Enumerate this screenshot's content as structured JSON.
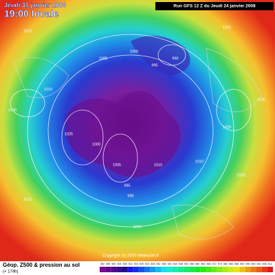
{
  "header": {
    "date": "Jeudi 31 janvier 2008",
    "time": "19:00 locale",
    "run": "Run GFS 12 Z du Jeudi 24 janvier 2008"
  },
  "footer": {
    "title": "Géop. Z500 & pression au sol",
    "lead": "(+ 174h)",
    "copyright": "Copyright (c) 2007 Meteociel.fr"
  },
  "colorbar": {
    "labels": [
      "492",
      "496",
      "500",
      "504",
      "508",
      "512",
      "516",
      "520",
      "524",
      "528",
      "532",
      "536",
      "540",
      "544",
      "548",
      "552",
      "556",
      "560",
      "564",
      "568",
      "572",
      "576",
      "580",
      "584",
      "588",
      "592",
      "596",
      "600",
      "604",
      "608",
      "612"
    ]
  },
  "isobar_labels": [
    "1015",
    "1025",
    "1005",
    "1010",
    "990",
    "995",
    "1000",
    "1030",
    "1035",
    "1020",
    "985",
    "1015",
    "1020",
    "1010",
    "1005",
    "1025",
    "1015",
    "1000",
    "1010",
    "990"
  ]
}
